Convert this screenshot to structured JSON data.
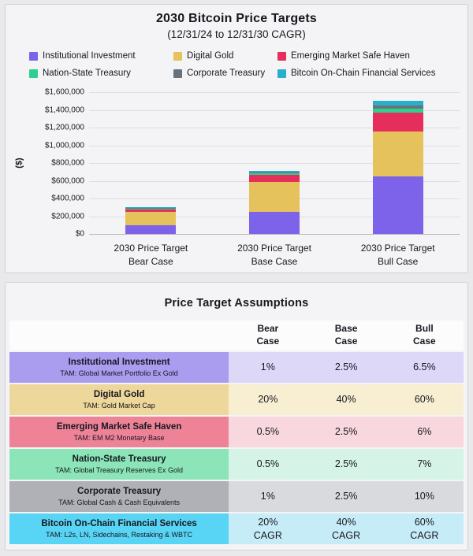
{
  "chart_data": {
    "type": "bar",
    "stacked": true,
    "title": "2030 Bitcoin Price Targets",
    "subtitle": "(12/31/24 to 12/31/30 CAGR)",
    "ylabel": "($)",
    "ylim": [
      0,
      1600000
    ],
    "ytick_step": 200000,
    "ytick_labels": [
      "$0",
      "$200,000",
      "$400,000",
      "$600,000",
      "$800,000",
      "$1,000,000",
      "$1,200,000",
      "$1,400,000",
      "$1,600,000"
    ],
    "grid": true,
    "legend_position": "top",
    "categories": [
      {
        "line1": "2030 Price Target",
        "line2": "Bear Case"
      },
      {
        "line1": "2030 Price Target",
        "line2": "Base Case"
      },
      {
        "line1": "2030 Price Target",
        "line2": "Bull Case"
      }
    ],
    "series": [
      {
        "name": "Institutional Investment",
        "color": "#7d63ea",
        "values": [
          95000,
          245000,
          650000
        ]
      },
      {
        "name": "Digital Gold",
        "color": "#e5c25b",
        "values": [
          155000,
          345000,
          510000
        ]
      },
      {
        "name": "Emerging Market Safe Haven",
        "color": "#e62e5c",
        "values": [
          30000,
          80000,
          210000
        ]
      },
      {
        "name": "Nation-State Treasury",
        "color": "#2fd08f",
        "values": [
          7000,
          15000,
          40000
        ]
      },
      {
        "name": "Corporate Treasury",
        "color": "#68727d",
        "values": [
          5000,
          10000,
          40000
        ]
      },
      {
        "name": "Bitcoin On-Chain Financial Services",
        "color": "#29afcb",
        "values": [
          10000,
          15000,
          50000
        ]
      }
    ]
  },
  "assumptions": {
    "title": "Price Target Assumptions",
    "columns": [
      {
        "line1": "Bear",
        "line2": "Case"
      },
      {
        "line1": "Base",
        "line2": "Case"
      },
      {
        "line1": "Bull",
        "line2": "Case"
      }
    ],
    "rows": [
      {
        "name": "Institutional Investment",
        "tam": "TAM: Global Market Portfolio Ex Gold",
        "values": [
          "1%",
          "2.5%",
          "6.5%"
        ],
        "value_suffix": "",
        "label_bg": "#aa9cef",
        "value_bg": "#ddd7f8"
      },
      {
        "name": "Digital Gold",
        "tam": "TAM: Gold Market Cap",
        "values": [
          "20%",
          "40%",
          "60%"
        ],
        "value_suffix": "",
        "label_bg": "#eed79a",
        "value_bg": "#f8eed2"
      },
      {
        "name": "Emerging Market Safe Haven",
        "tam": "TAM: EM M2 Monetary Base",
        "values": [
          "0.5%",
          "2.5%",
          "6%"
        ],
        "value_suffix": "",
        "label_bg": "#ee8398",
        "value_bg": "#f8d7de"
      },
      {
        "name": "Nation-State Treasury",
        "tam": "TAM: Global Treasury Reserves Ex Gold",
        "values": [
          "0.5%",
          "2.5%",
          "7%"
        ],
        "value_suffix": "",
        "label_bg": "#8be5b8",
        "value_bg": "#d5f3e6"
      },
      {
        "name": "Corporate Treasury",
        "tam": "TAM: Global Cash & Cash Equivalents",
        "values": [
          "1%",
          "2.5%",
          "10%"
        ],
        "value_suffix": "",
        "label_bg": "#afb1b6",
        "value_bg": "#d9dadd"
      },
      {
        "name": "Bitcoin On-Chain Financial Services",
        "tam": "TAM: L2s, LN, Sidechains, Restaking & WBTC",
        "values": [
          "20%",
          "40%",
          "60%"
        ],
        "value_suffix": "CAGR",
        "label_bg": "#58d4f4",
        "value_bg": "#c6ecf8"
      }
    ]
  }
}
